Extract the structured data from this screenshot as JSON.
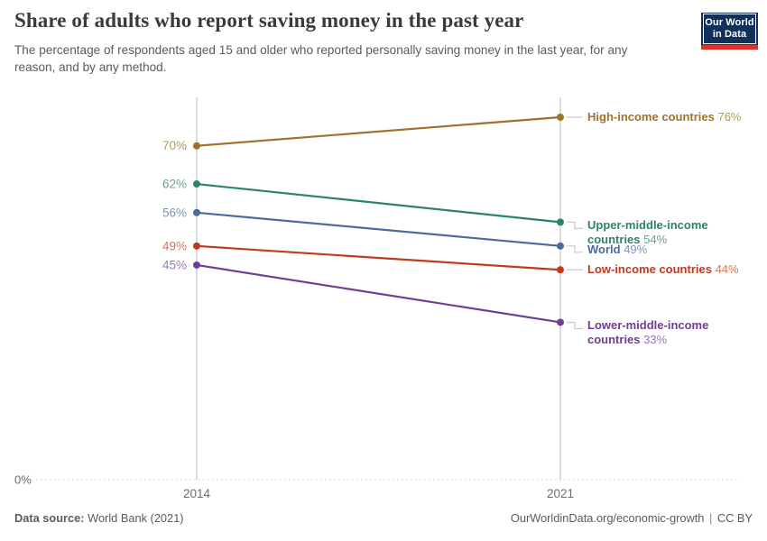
{
  "header": {
    "title": "Share of adults who report saving money in the past year",
    "subtitle": "The percentage of respondents aged 15 and older who reported personally saving money in the last year, for any reason, and by any method.",
    "logo": {
      "line1": "Our World",
      "line2": "in Data",
      "bg_color": "#12305A",
      "stripe_color": "#D7352B"
    }
  },
  "chart_data": {
    "type": "line",
    "variant": "slope",
    "title": "Share of adults who report saving money in the past year",
    "x": [
      2014,
      2021
    ],
    "x_tick_labels": [
      "2014",
      "2021"
    ],
    "y_axis": {
      "baseline_label": "0%",
      "ylim": [
        0,
        79
      ],
      "grid": "baseline-only"
    },
    "legend_position": "inline-right-labels",
    "axis_color": "#cfcfcf",
    "tick_text_color": "#6e6e6e",
    "series": [
      {
        "id": "high-income",
        "name": "High-income countries",
        "values": [
          70,
          76
        ],
        "start_label": "70%",
        "end_label": "76%",
        "color": "#A0722A",
        "tint": "#B8975E"
      },
      {
        "id": "upper-middle-income",
        "name": "Upper-middle-income countries",
        "values": [
          62,
          54
        ],
        "start_label": "62%",
        "end_label": "54%",
        "color": "#2C8465",
        "tint": "#63A68C"
      },
      {
        "id": "world",
        "name": "World",
        "values": [
          56,
          49
        ],
        "start_label": "56%",
        "end_label": "49%",
        "color": "#4C6A9C",
        "tint": "#8095B9"
      },
      {
        "id": "low-income",
        "name": "Low-income countries",
        "values": [
          49,
          44
        ],
        "start_label": "49%",
        "end_label": "44%",
        "color": "#C03A1D",
        "tint": "#D0765B"
      },
      {
        "id": "lower-middle-income",
        "name": "Lower-middle-income countries",
        "values": [
          45,
          33
        ],
        "start_label": "45%",
        "end_label": "33%",
        "color": "#6D3E91",
        "tint": "#9679B2"
      }
    ]
  },
  "footer": {
    "source_label": "Data source:",
    "source_value": "World Bank (2021)",
    "url": "OurWorldinData.org/economic-growth",
    "separator": "|",
    "license": "CC BY"
  }
}
